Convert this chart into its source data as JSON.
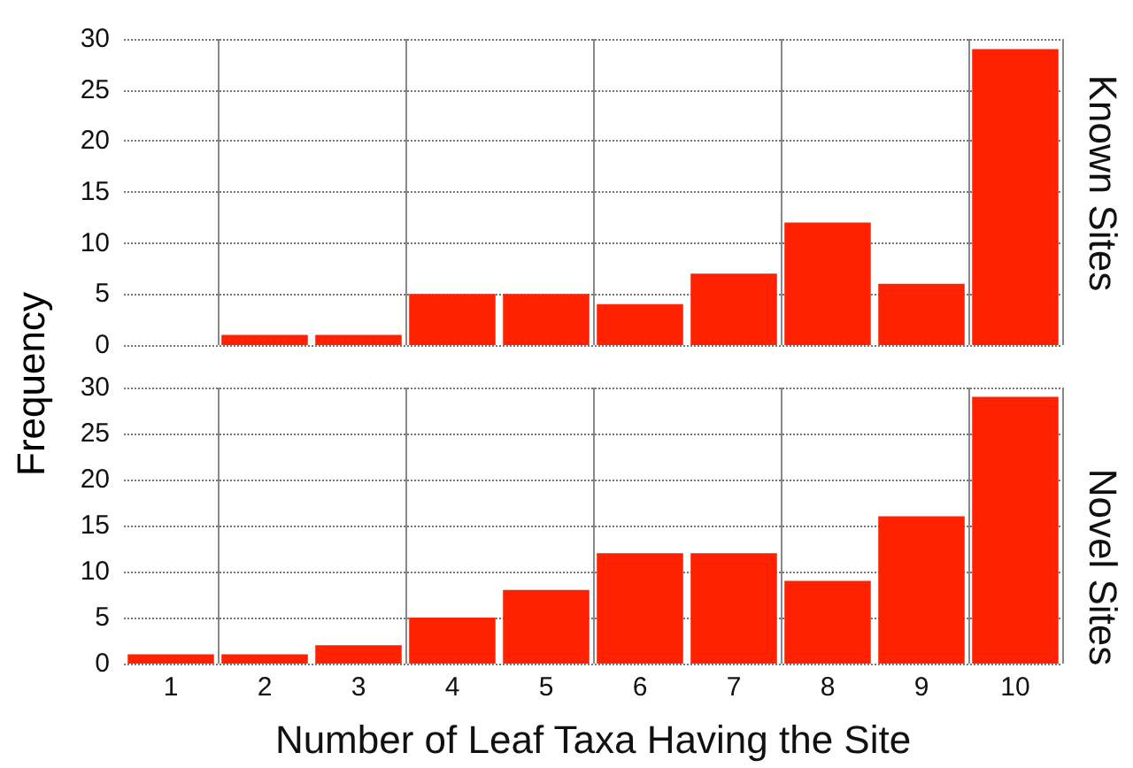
{
  "chart_data": [
    {
      "type": "bar",
      "title": "Known Sites",
      "ylabel": "Frequency",
      "categories": [
        "1",
        "2",
        "3",
        "4",
        "5",
        "6",
        "7",
        "8",
        "9",
        "10"
      ],
      "values": [
        0,
        1,
        1,
        5,
        5,
        4,
        7,
        12,
        6,
        29
      ],
      "color": "#ff2200",
      "ylim": [
        0,
        30
      ],
      "yticks": [
        0,
        5,
        10,
        15,
        20,
        25,
        30
      ],
      "grid": true,
      "tick_labels": "y"
    },
    {
      "type": "bar",
      "title": "Novel Sites",
      "xlabel": "Number of Leaf Taxa Having the Site",
      "categories": [
        "1",
        "2",
        "3",
        "4",
        "5",
        "6",
        "7",
        "8",
        "9",
        "10"
      ],
      "values": [
        1,
        1,
        2,
        5,
        8,
        12,
        12,
        9,
        16,
        29
      ],
      "color": "#ff2200",
      "ylim": [
        0,
        30
      ],
      "yticks": [
        0,
        5,
        10,
        15,
        20,
        25,
        30
      ],
      "grid": true
    }
  ]
}
